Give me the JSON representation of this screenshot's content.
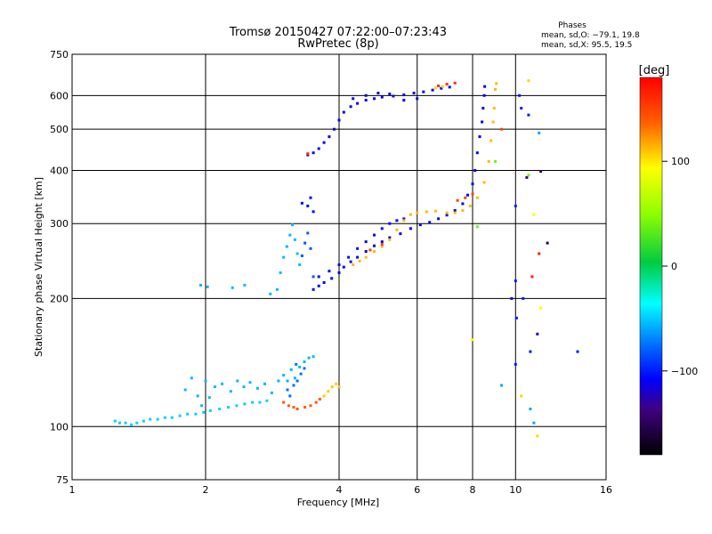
{
  "chart_data": {
    "type": "scatter",
    "title": "Tromsø 20150427 07:22:00–07:23:43",
    "subtitle": "RwPretec (8p)",
    "xlabel": "Frequency [MHz]",
    "ylabel": "Stationary phase Virtual Height [km]",
    "x_scale": "log2",
    "y_scale": "log",
    "xlim": [
      1,
      16
    ],
    "ylim": [
      75,
      750
    ],
    "x_ticks": [
      "1",
      "2",
      "4",
      "6",
      "8",
      "10",
      "16"
    ],
    "x_tick_values": [
      1,
      2,
      4,
      6,
      8,
      10,
      16
    ],
    "y_ticks": [
      "75",
      "100",
      "200",
      "300",
      "400",
      "500",
      "600",
      "750"
    ],
    "y_tick_values": [
      75,
      100,
      200,
      300,
      400,
      500,
      600,
      750
    ],
    "grid": true,
    "stats": {
      "heading": "Phases",
      "o_line": "mean, sd,O: −79.1, 19.8",
      "x_line": "mean, sd,X:  95.5, 19.5"
    },
    "colorbar": {
      "label": "[deg]",
      "range": [
        -180,
        180
      ],
      "ticks": [
        "100",
        "0",
        "−100"
      ],
      "tick_values": [
        100,
        0,
        -100
      ]
    },
    "series": [
      {
        "phase": -48,
        "points": [
          [
            1.25,
            103
          ],
          [
            1.28,
            102
          ],
          [
            1.32,
            102
          ],
          [
            1.36,
            101
          ],
          [
            1.4,
            102
          ],
          [
            1.45,
            103
          ],
          [
            1.5,
            104
          ],
          [
            1.56,
            104
          ],
          [
            1.62,
            105
          ],
          [
            1.68,
            105
          ],
          [
            1.75,
            106
          ],
          [
            1.82,
            107
          ],
          [
            1.9,
            107
          ],
          [
            1.98,
            108
          ],
          [
            2.05,
            109
          ],
          [
            2.15,
            110
          ],
          [
            2.25,
            111
          ],
          [
            2.35,
            112
          ],
          [
            2.45,
            113
          ],
          [
            2.55,
            114
          ],
          [
            2.65,
            114
          ],
          [
            2.75,
            115
          ]
        ]
      },
      {
        "phase": -55,
        "points": [
          [
            1.8,
            122
          ],
          [
            1.86,
            130
          ],
          [
            1.92,
            118
          ],
          [
            1.96,
            112
          ],
          [
            2.0,
            128
          ],
          [
            2.04,
            117
          ],
          [
            2.1,
            124
          ],
          [
            2.18,
            126
          ],
          [
            2.28,
            121
          ],
          [
            2.36,
            128
          ],
          [
            2.44,
            124
          ],
          [
            2.52,
            127
          ],
          [
            2.62,
            123
          ],
          [
            2.72,
            126
          ],
          [
            2.82,
            120
          ],
          [
            2.92,
            128
          ],
          [
            3.0,
            132
          ],
          [
            3.06,
            128
          ],
          [
            3.12,
            136
          ],
          [
            3.18,
            130
          ],
          [
            3.26,
            138
          ],
          [
            3.34,
            142
          ],
          [
            3.42,
            145
          ],
          [
            3.5,
            146
          ]
        ]
      },
      {
        "phase": -75,
        "points": [
          [
            3.1,
            118
          ],
          [
            3.16,
            125
          ],
          [
            3.22,
            128
          ],
          [
            3.28,
            133
          ],
          [
            3.34,
            137
          ],
          [
            3.06,
            122
          ],
          [
            3.2,
            140
          ]
        ]
      },
      {
        "phase": 140,
        "points": [
          [
            3.0,
            114
          ],
          [
            3.08,
            112
          ],
          [
            3.16,
            111
          ],
          [
            3.22,
            110
          ],
          [
            3.35,
            111
          ],
          [
            3.45,
            112
          ],
          [
            3.55,
            114
          ],
          [
            3.62,
            116
          ]
        ]
      },
      {
        "phase": 108,
        "points": [
          [
            3.7,
            118
          ],
          [
            3.78,
            121
          ],
          [
            3.86,
            124
          ],
          [
            3.94,
            126
          ],
          [
            4.0,
            124
          ]
        ]
      },
      {
        "phase": -55,
        "points": [
          [
            1.95,
            215
          ],
          [
            2.02,
            213
          ],
          [
            2.3,
            212
          ],
          [
            2.45,
            215
          ],
          [
            2.8,
            205
          ],
          [
            2.9,
            210
          ],
          [
            2.95,
            230
          ],
          [
            3.0,
            250
          ],
          [
            3.05,
            265
          ],
          [
            3.1,
            282
          ],
          [
            3.14,
            298
          ],
          [
            3.18,
            275
          ],
          [
            3.22,
            255
          ],
          [
            3.26,
            240
          ]
        ]
      },
      {
        "phase": -82,
        "points": [
          [
            3.3,
            252
          ],
          [
            3.35,
            270
          ],
          [
            3.4,
            285
          ],
          [
            3.45,
            262
          ],
          [
            3.5,
            225
          ]
        ]
      },
      {
        "phase": -110,
        "points": [
          [
            3.5,
            210
          ],
          [
            3.6,
            214
          ],
          [
            3.7,
            218
          ],
          [
            3.85,
            223
          ],
          [
            4.0,
            230
          ],
          [
            4.1,
            237
          ],
          [
            4.25,
            244
          ],
          [
            4.4,
            250
          ],
          [
            4.6,
            258
          ],
          [
            4.8,
            266
          ],
          [
            5.0,
            272
          ],
          [
            5.2,
            278
          ],
          [
            5.5,
            284
          ],
          [
            5.8,
            292
          ],
          [
            6.1,
            298
          ],
          [
            6.4,
            302
          ],
          [
            6.7,
            308
          ],
          [
            7.0,
            314
          ],
          [
            7.3,
            322
          ],
          [
            7.6,
            334
          ],
          [
            7.8,
            350
          ],
          [
            8.0,
            372
          ],
          [
            8.1,
            400
          ],
          [
            8.2,
            440
          ],
          [
            8.3,
            480
          ],
          [
            8.4,
            520
          ],
          [
            8.45,
            560
          ],
          [
            8.5,
            600
          ],
          [
            8.52,
            630
          ]
        ]
      },
      {
        "phase": -105,
        "points": [
          [
            3.6,
            225
          ],
          [
            3.8,
            232
          ],
          [
            4.0,
            240
          ],
          [
            4.2,
            250
          ],
          [
            4.4,
            262
          ],
          [
            4.6,
            272
          ],
          [
            4.8,
            282
          ],
          [
            5.0,
            292
          ],
          [
            5.2,
            300
          ],
          [
            5.4,
            305
          ],
          [
            5.6,
            308
          ],
          [
            3.3,
            335
          ],
          [
            3.4,
            330
          ],
          [
            3.45,
            345
          ],
          [
            3.5,
            320
          ]
        ]
      },
      {
        "phase": 112,
        "points": [
          [
            4.3,
            240
          ],
          [
            4.45,
            245
          ],
          [
            4.6,
            250
          ],
          [
            4.8,
            258
          ],
          [
            5.0,
            265
          ],
          [
            5.2,
            275
          ],
          [
            5.4,
            290
          ],
          [
            5.6,
            305
          ],
          [
            5.8,
            315
          ],
          [
            6.0,
            318
          ],
          [
            6.3,
            320
          ],
          [
            6.6,
            321
          ],
          [
            7.0,
            318
          ],
          [
            7.3,
            318
          ],
          [
            7.6,
            322
          ],
          [
            7.9,
            330
          ],
          [
            8.2,
            345
          ],
          [
            8.5,
            375
          ],
          [
            8.7,
            420
          ],
          [
            8.8,
            470
          ],
          [
            8.9,
            520
          ],
          [
            8.95,
            560
          ],
          [
            9.0,
            620
          ],
          [
            9.05,
            640
          ]
        ]
      },
      {
        "phase": 150,
        "points": [
          [
            4.7,
            260
          ],
          [
            5.0,
            268
          ],
          [
            7.4,
            340
          ],
          [
            7.7,
            345
          ],
          [
            8.0,
            352
          ],
          [
            9.3,
            500
          ]
        ]
      },
      {
        "phase": -112,
        "points": [
          [
            3.4,
            435
          ],
          [
            3.5,
            440
          ],
          [
            3.6,
            450
          ],
          [
            3.7,
            465
          ],
          [
            3.8,
            480
          ],
          [
            3.9,
            500
          ],
          [
            4.0,
            525
          ],
          [
            4.1,
            548
          ],
          [
            4.25,
            565
          ],
          [
            4.4,
            575
          ],
          [
            4.6,
            585
          ],
          [
            4.8,
            590
          ],
          [
            5.0,
            595
          ],
          [
            5.3,
            598
          ],
          [
            5.6,
            602
          ],
          [
            5.9,
            608
          ],
          [
            6.2,
            612
          ],
          [
            6.5,
            618
          ],
          [
            6.8,
            624
          ],
          [
            7.1,
            628
          ],
          [
            4.3,
            590
          ],
          [
            4.6,
            600
          ],
          [
            4.9,
            608
          ],
          [
            5.2,
            605
          ],
          [
            5.6,
            585
          ],
          [
            6.0,
            590
          ]
        ]
      },
      {
        "phase": 160,
        "points": [
          [
            6.7,
            632
          ],
          [
            7.0,
            638
          ],
          [
            7.3,
            642
          ],
          [
            3.4,
            438
          ]
        ]
      },
      {
        "phase": 105,
        "points": [
          [
            6.6,
            625
          ],
          [
            6.85,
            630
          ],
          [
            10.7,
            650
          ],
          [
            11.2,
            95
          ],
          [
            10.3,
            118
          ]
        ]
      },
      {
        "phase": -100,
        "points": [
          [
            10.0,
            330
          ],
          [
            10.0,
            220
          ],
          [
            10.05,
            180
          ],
          [
            10.0,
            140
          ],
          [
            10.4,
            200
          ],
          [
            10.8,
            150
          ],
          [
            10.3,
            560
          ],
          [
            10.7,
            540
          ],
          [
            13.8,
            150
          ],
          [
            10.2,
            600
          ]
        ]
      },
      {
        "phase": -60,
        "points": [
          [
            9.3,
            125
          ],
          [
            11.0,
            102
          ],
          [
            11.3,
            490
          ],
          [
            10.8,
            110
          ]
        ]
      },
      {
        "phase": -150,
        "points": [
          [
            11.4,
            398
          ],
          [
            10.6,
            385
          ],
          [
            11.8,
            270
          ]
        ]
      },
      {
        "phase": -120,
        "points": [
          [
            11.2,
            165
          ],
          [
            9.8,
            200
          ]
        ]
      },
      {
        "phase": 40,
        "points": [
          [
            10.7,
            390
          ],
          [
            9.0,
            420
          ],
          [
            8.2,
            295
          ]
        ]
      },
      {
        "phase": 90,
        "points": [
          [
            8.0,
            160
          ],
          [
            11.0,
            315
          ],
          [
            11.4,
            190
          ]
        ]
      },
      {
        "phase": 165,
        "points": [
          [
            11.3,
            255
          ],
          [
            10.9,
            225
          ]
        ]
      }
    ]
  }
}
